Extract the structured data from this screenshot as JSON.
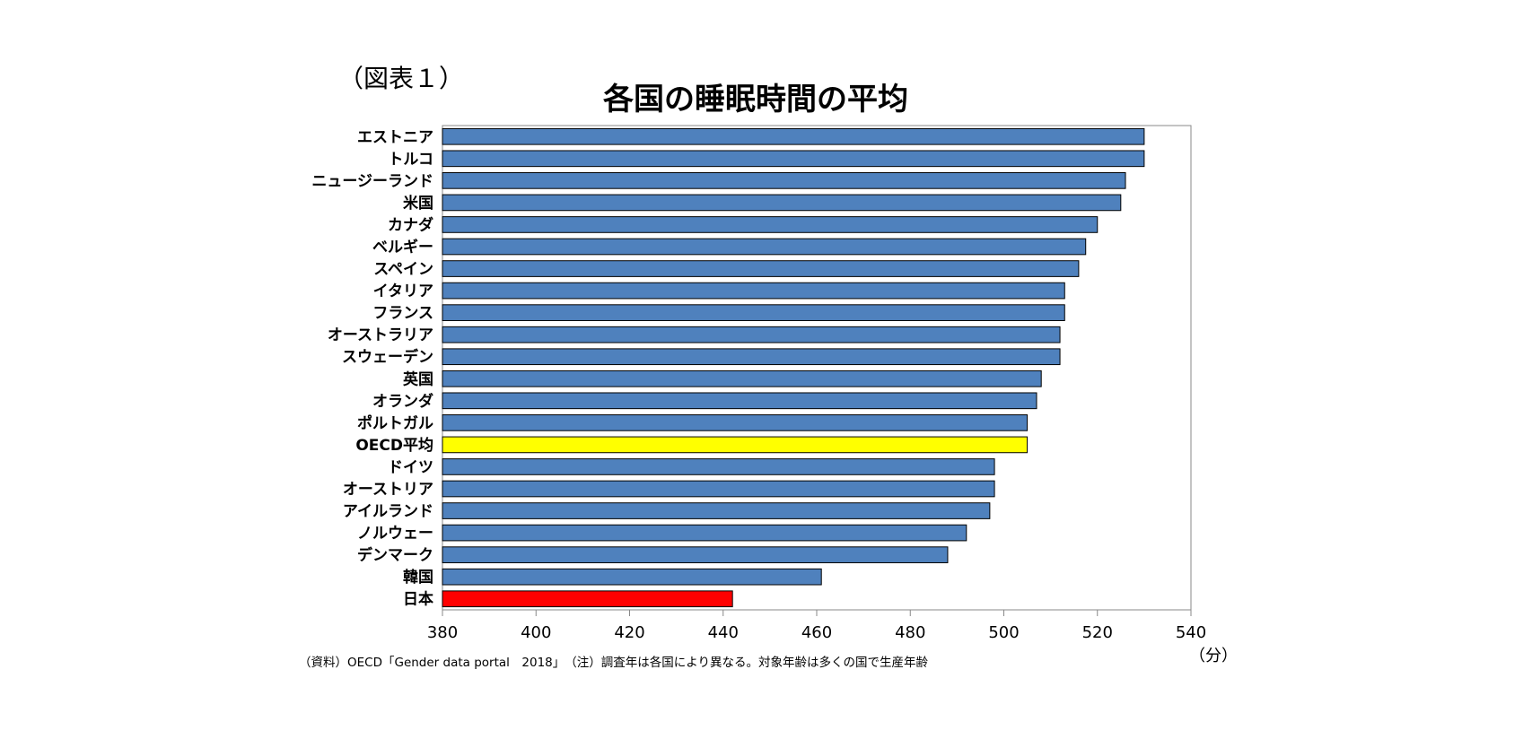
{
  "figure_label": "（図表１）",
  "chart_data": {
    "type": "bar",
    "orientation": "horizontal",
    "title": "各国の睡眠時間の平均",
    "categories": [
      "エストニア",
      "トルコ",
      "ニュージーランド",
      "米国",
      "カナダ",
      "ベルギー",
      "スペイン",
      "イタリア",
      "フランス",
      "オーストラリア",
      "スウェーデン",
      "英国",
      "オランダ",
      "ポルトガル",
      "OECD平均",
      "ドイツ",
      "オーストリア",
      "アイルランド",
      "ノルウェー",
      "デンマーク",
      "韓国",
      "日本"
    ],
    "values": [
      530,
      530,
      526,
      525,
      520,
      517.5,
      516,
      513,
      513,
      512,
      512,
      508,
      507,
      505,
      505,
      498,
      498,
      497,
      492,
      488,
      461,
      442
    ],
    "bar_colors": {
      "default": "#4f81bd",
      "OECD平均": "#ffff00",
      "日本": "#ff0000"
    },
    "xlim": [
      380,
      540
    ],
    "xticks": [
      "380",
      "400",
      "420",
      "440",
      "460",
      "480",
      "500",
      "520",
      "540"
    ],
    "xunit": "（分）",
    "grid": false
  },
  "footnote": "（資料）OECD「Gender data portal　2018」　（注）調査年は各国により異なる。対象年齢は多くの国で生産年齢"
}
